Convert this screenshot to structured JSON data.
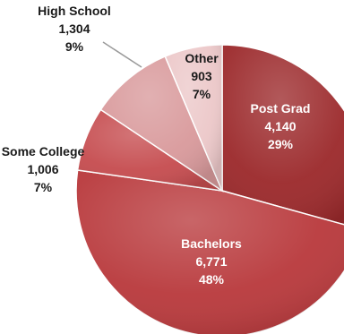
{
  "chart_data": {
    "type": "pie",
    "title": "",
    "slices": [
      {
        "name": "Post Grad",
        "value": 4140,
        "value_label": "4,140",
        "percent": "29%",
        "color": "#9c2a2c"
      },
      {
        "name": "Bachelors",
        "value": 6771,
        "value_label": "6,771",
        "percent": "48%",
        "color": "#b93a3d"
      },
      {
        "name": "Some College",
        "value": 1006,
        "value_label": "1,006",
        "percent": "7%",
        "color": "#c64d50"
      },
      {
        "name": "High School",
        "value": 1304,
        "value_label": "1,304",
        "percent": "9%",
        "color": "#d99a9c"
      },
      {
        "name": "Other",
        "value": 903,
        "value_label": "903",
        "percent": "7%",
        "color": "#ecc8c9"
      }
    ],
    "legend": "none",
    "labels": "data labels with category, value and percent"
  }
}
